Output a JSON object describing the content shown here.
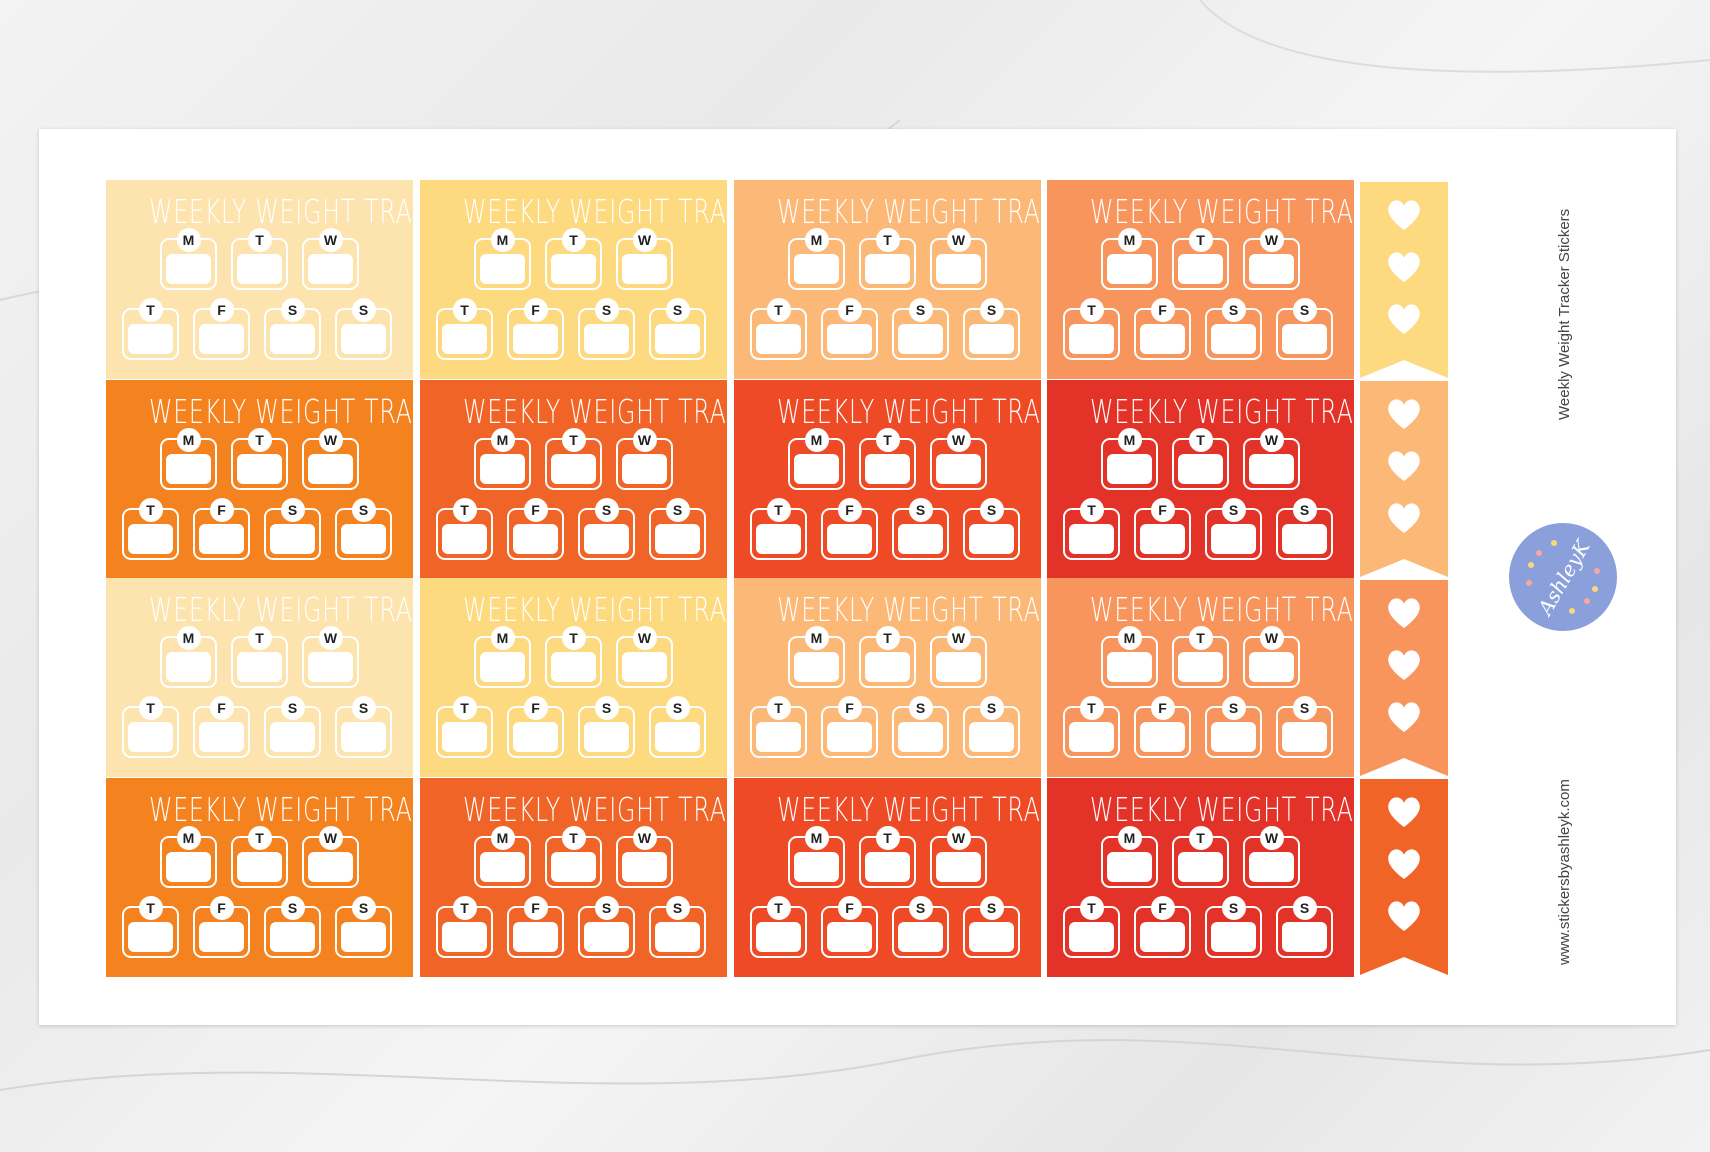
{
  "product_title": "Weekly Weight Tracker Stickers",
  "website": "www.stickersbyashleyk.com",
  "logo_text": "by AshleyK",
  "sticker": {
    "title": "WEEKLY WEIGHT TRACKER",
    "top_days": [
      "M",
      "T",
      "W"
    ],
    "bottom_days": [
      "T",
      "F",
      "S",
      "S"
    ]
  },
  "sticker_rows": [
    [
      "#fde3ae",
      "#fdd97f",
      "#fbb877",
      "#f7955d"
    ],
    [
      "#f4821f",
      "#f06427",
      "#ee4a26",
      "#e33228"
    ],
    [
      "#fde3ae",
      "#fdd97f",
      "#fbb877",
      "#f7955d"
    ],
    [
      "#f4821f",
      "#f06427",
      "#ee4a26",
      "#e33228"
    ]
  ],
  "flag_colors": [
    "#fdd97f",
    "#fbb877",
    "#f7955d",
    "#f06427"
  ],
  "logo_color": "#8b9fdb"
}
